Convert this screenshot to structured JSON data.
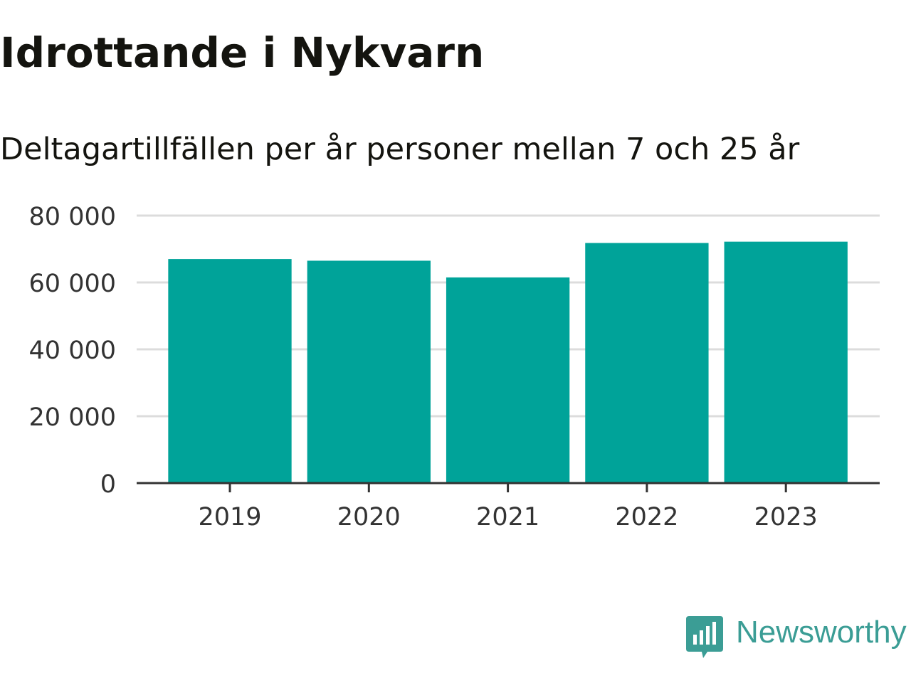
{
  "title": "Idrottande i Nykvarn",
  "subtitle": "Deltagartillfällen per år personer mellan 7 och 25 år",
  "brand": {
    "name": "Newsworthy",
    "icon": "newsworthy-logo-icon",
    "color": "#3b9d95"
  },
  "colors": {
    "bar": "#00a399",
    "grid": "#dcdcdc",
    "axis": "#333333",
    "text": "#333333"
  },
  "chart_data": {
    "type": "bar",
    "categories": [
      "2019",
      "2020",
      "2021",
      "2022",
      "2023"
    ],
    "values": [
      67000,
      66500,
      61500,
      71800,
      72200
    ],
    "y_ticks": [
      0,
      20000,
      40000,
      60000,
      80000
    ],
    "y_tick_labels": [
      "0",
      "20 000",
      "40 000",
      "60 000",
      "80 000"
    ],
    "ylim": [
      0,
      80000
    ],
    "xlabel": "",
    "ylabel": "",
    "grid": true,
    "legend": "none"
  }
}
